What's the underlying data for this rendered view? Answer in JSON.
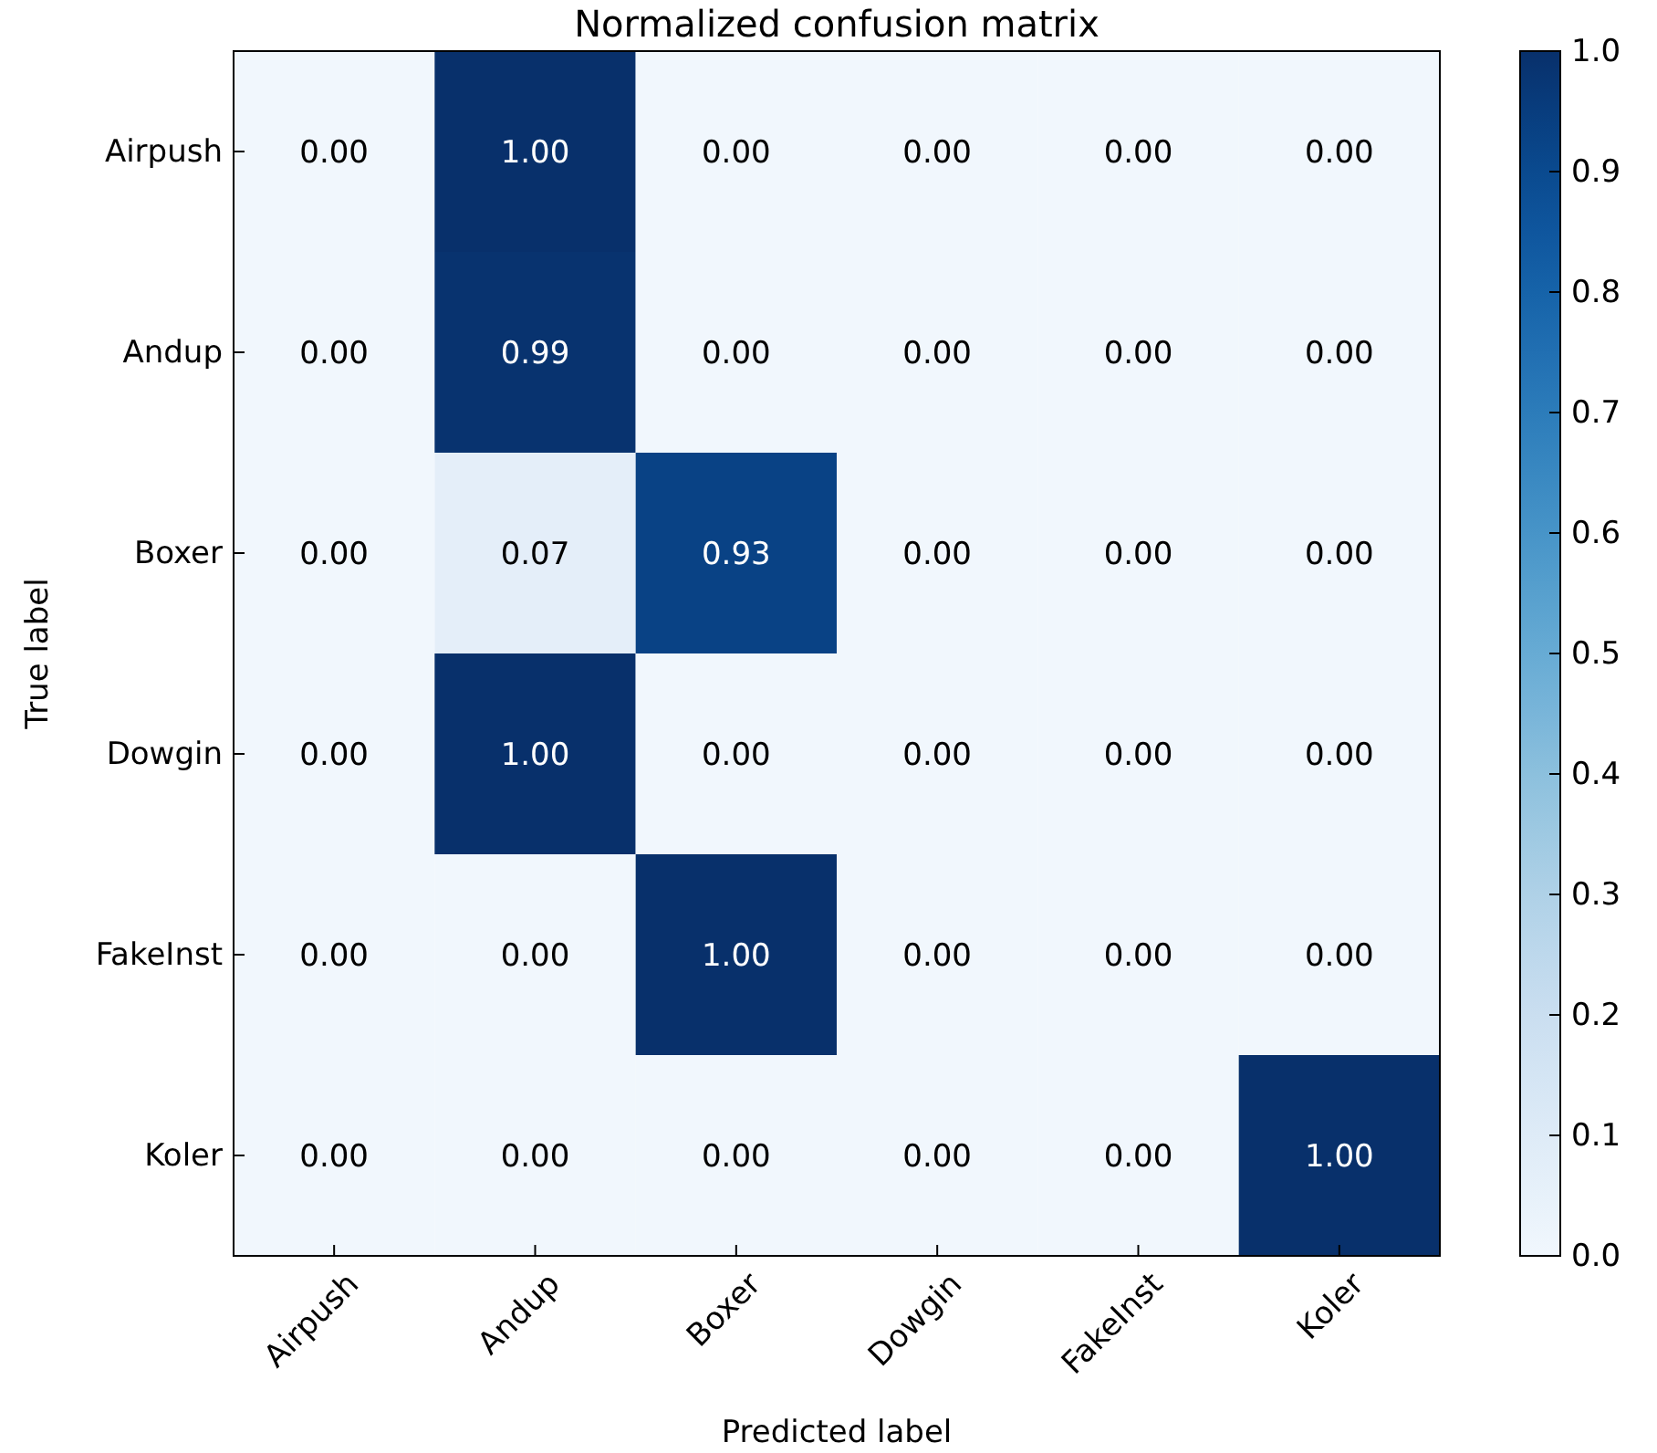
{
  "chart_data": {
    "type": "heatmap",
    "title": "Normalized confusion matrix",
    "xlabel": "Predicted label",
    "ylabel": "True label",
    "categories": [
      "Airpush",
      "Andup",
      "Boxer",
      "Dowgin",
      "FakeInst",
      "Koler"
    ],
    "y_categories": [
      "Airpush",
      "Andup",
      "Boxer",
      "Dowgin",
      "FakeInst",
      "Koler"
    ],
    "cells": [
      [
        0,
        1.0,
        0,
        0,
        0,
        0
      ],
      [
        0,
        0.99,
        0,
        0,
        0,
        0
      ],
      [
        0,
        0.07,
        0.93,
        0,
        0,
        0
      ],
      [
        0,
        1.0,
        0,
        0,
        0,
        0
      ],
      [
        0,
        0,
        1.0,
        0,
        0,
        0
      ],
      [
        0,
        0,
        0,
        0,
        0,
        1.0
      ]
    ],
    "cell_labels": [
      [
        "0.00",
        "1.00",
        "0.00",
        "0.00",
        "0.00",
        "0.00"
      ],
      [
        "0.00",
        "0.99",
        "0.00",
        "0.00",
        "0.00",
        "0.00"
      ],
      [
        "0.00",
        "0.07",
        "0.93",
        "0.00",
        "0.00",
        "0.00"
      ],
      [
        "0.00",
        "1.00",
        "0.00",
        "0.00",
        "0.00",
        "0.00"
      ],
      [
        "0.00",
        "0.00",
        "1.00",
        "0.00",
        "0.00",
        "0.00"
      ],
      [
        "0.00",
        "0.00",
        "0.00",
        "0.00",
        "0.00",
        "1.00"
      ]
    ],
    "clim": [
      0,
      1
    ],
    "cticks": [
      {
        "value": 0,
        "label": "0.0"
      },
      {
        "value": 0.1,
        "label": "0.1"
      },
      {
        "value": 0.2,
        "label": "0.2"
      },
      {
        "value": 0.3,
        "label": "0.3"
      },
      {
        "value": 0.4,
        "label": "0.4"
      },
      {
        "value": 0.5,
        "label": "0.5"
      },
      {
        "value": 0.6,
        "label": "0.6"
      },
      {
        "value": 0.7,
        "label": "0.7"
      },
      {
        "value": 0.8,
        "label": "0.8"
      },
      {
        "value": 0.9,
        "label": "0.9"
      },
      {
        "value": 1,
        "label": "1.0"
      }
    ]
  }
}
